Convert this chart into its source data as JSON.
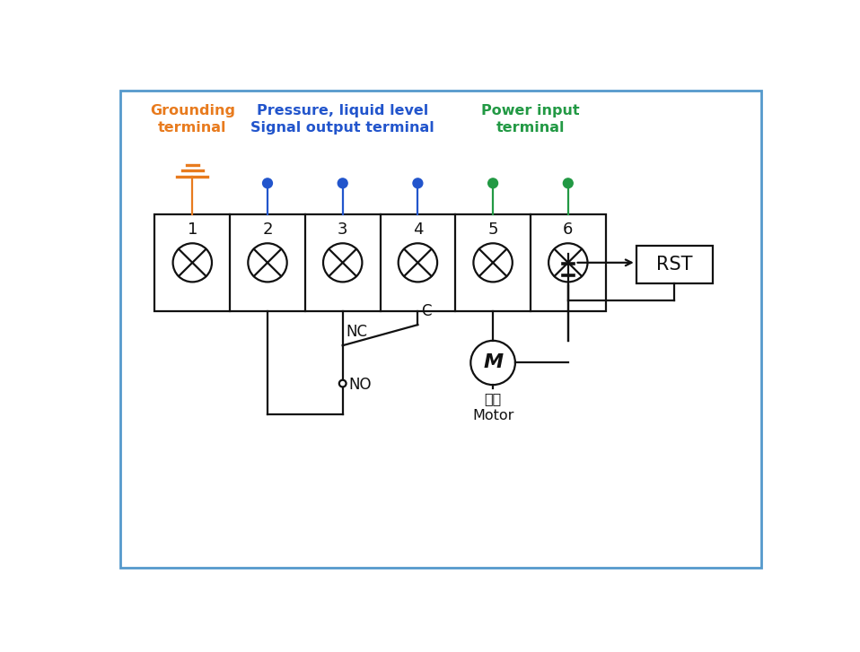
{
  "fig_width": 9.58,
  "fig_height": 7.27,
  "bg_color": "#ffffff",
  "border_color": "#5599cc",
  "border_lw": 2.0,
  "grounding_color": "#e87b1e",
  "signal_color": "#2255cc",
  "power_color": "#229944",
  "line_color": "#111111",
  "line_lw": 1.6,
  "label_grounding_line1": "Grounding",
  "label_grounding_line2": "terminal",
  "label_signal_line1": "Pressure, liquid level",
  "label_signal_line2": "Signal output terminal",
  "label_power_line1": "Power input",
  "label_power_line2": "terminal",
  "nc_label": "NC",
  "c_label": "C",
  "no_label": "NO",
  "rst_label": "RST",
  "motor_label_zh": "电机",
  "motor_label_en": "Motor",
  "font_size_label": 11.5,
  "font_size_number": 13,
  "font_size_relay": 12,
  "font_size_rst": 15,
  "font_size_motor": 11.5
}
